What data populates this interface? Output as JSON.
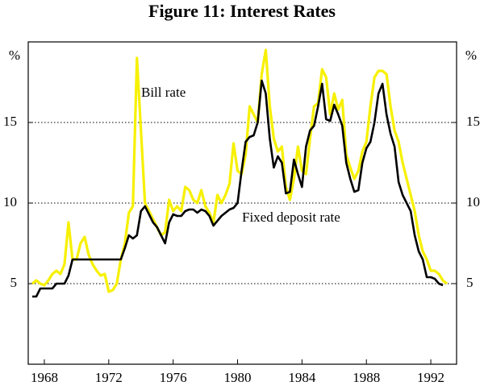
{
  "chart_data": {
    "type": "line",
    "title": "Figure 11: Interest Rates",
    "ylabel": "%",
    "y2label": "%",
    "x": [
      1967.25,
      1967.5,
      1967.75,
      1968,
      1968.25,
      1968.5,
      1968.75,
      1969,
      1969.25,
      1969.5,
      1969.75,
      1970,
      1970.25,
      1970.5,
      1970.75,
      1971,
      1971.25,
      1971.5,
      1971.75,
      1972,
      1972.25,
      1972.5,
      1972.75,
      1973,
      1973.25,
      1973.5,
      1973.75,
      1974,
      1974.25,
      1974.5,
      1974.75,
      1975,
      1975.25,
      1975.5,
      1975.75,
      1976,
      1976.25,
      1976.5,
      1976.75,
      1977,
      1977.25,
      1977.5,
      1977.75,
      1978,
      1978.25,
      1978.5,
      1978.75,
      1979,
      1979.25,
      1979.5,
      1979.75,
      1980,
      1980.25,
      1980.5,
      1980.75,
      1981,
      1981.25,
      1981.5,
      1981.75,
      1982,
      1982.25,
      1982.5,
      1982.75,
      1983,
      1983.25,
      1983.5,
      1983.75,
      1984,
      1984.25,
      1984.5,
      1984.75,
      1985,
      1985.25,
      1985.5,
      1985.75,
      1986,
      1986.25,
      1986.5,
      1986.75,
      1987,
      1987.25,
      1987.5,
      1987.75,
      1988,
      1988.25,
      1988.5,
      1988.75,
      1989,
      1989.25,
      1989.5,
      1989.75,
      1990,
      1990.25,
      1990.5,
      1990.75,
      1991,
      1991.25,
      1991.5,
      1991.75,
      1992,
      1992.25,
      1992.5,
      1992.75,
      1993
    ],
    "series": [
      {
        "name": "Bill rate",
        "color": "#f7f000",
        "values": [
          5.0,
          5.2,
          5.0,
          4.9,
          5.2,
          5.6,
          5.8,
          5.6,
          6.2,
          8.8,
          6.5,
          6.5,
          7.5,
          7.9,
          6.8,
          6.2,
          5.8,
          5.5,
          5.6,
          4.5,
          4.6,
          5.0,
          6.5,
          7.5,
          9.4,
          9.8,
          19.0,
          14.5,
          10.0,
          9.5,
          9.0,
          8.5,
          8.0,
          8.2,
          10.2,
          9.5,
          9.8,
          9.5,
          11.0,
          10.8,
          10.2,
          10.0,
          10.8,
          9.8,
          9.4,
          8.8,
          10.5,
          10.0,
          10.5,
          11.2,
          13.7,
          12.0,
          11.8,
          13.0,
          16.0,
          15.5,
          15.0,
          18.0,
          19.5,
          16.0,
          14.0,
          13.2,
          13.5,
          11.0,
          10.2,
          11.5,
          13.5,
          12.0,
          11.8,
          14.0,
          16.0,
          16.2,
          18.3,
          17.8,
          15.5,
          16.8,
          15.8,
          16.4,
          13.0,
          12.2,
          11.5,
          12.0,
          13.2,
          13.8,
          16.0,
          17.8,
          18.2,
          18.2,
          18.0,
          16.0,
          14.5,
          13.8,
          12.5,
          11.5,
          10.5,
          9.5,
          8.0,
          7.0,
          6.5,
          5.8,
          5.8,
          5.6,
          5.2,
          5.0
        ]
      },
      {
        "name": "Fixed deposit rate",
        "color": "#000000",
        "values": [
          4.2,
          4.2,
          4.7,
          4.7,
          4.7,
          4.7,
          5.0,
          5.0,
          5.0,
          5.5,
          6.5,
          6.5,
          6.5,
          6.5,
          6.5,
          6.5,
          6.5,
          6.5,
          6.5,
          6.5,
          6.5,
          6.5,
          6.5,
          7.2,
          8.0,
          7.8,
          8.0,
          9.5,
          9.8,
          9.3,
          8.8,
          8.5,
          8.0,
          7.5,
          8.8,
          9.3,
          9.2,
          9.2,
          9.5,
          9.6,
          9.6,
          9.4,
          9.6,
          9.5,
          9.2,
          8.6,
          8.9,
          9.2,
          9.4,
          9.6,
          9.7,
          10.0,
          12.0,
          13.8,
          14.1,
          14.2,
          15.0,
          17.6,
          16.8,
          14.0,
          12.2,
          12.9,
          12.5,
          10.6,
          10.7,
          12.7,
          11.8,
          11.0,
          13.5,
          14.5,
          14.8,
          16.0,
          17.4,
          15.2,
          15.1,
          16.1,
          15.5,
          14.8,
          12.5,
          11.5,
          10.7,
          10.8,
          12.5,
          13.4,
          13.8,
          15.0,
          16.8,
          17.4,
          15.5,
          14.3,
          13.5,
          11.3,
          10.5,
          10.0,
          9.5,
          8.0,
          7.0,
          6.5,
          5.4,
          5.4,
          5.3,
          5.0,
          4.9,
          null
        ]
      }
    ],
    "xlim": [
      1967.0,
      1993.6
    ],
    "xticks": [
      1968,
      1972,
      1976,
      1980,
      1984,
      1988,
      1992
    ],
    "ylim": [
      0,
      20
    ],
    "yticks": [
      5,
      10,
      15
    ],
    "y2lim": [
      0,
      20
    ],
    "y2ticks": [
      5,
      10,
      15
    ],
    "grid": true
  }
}
